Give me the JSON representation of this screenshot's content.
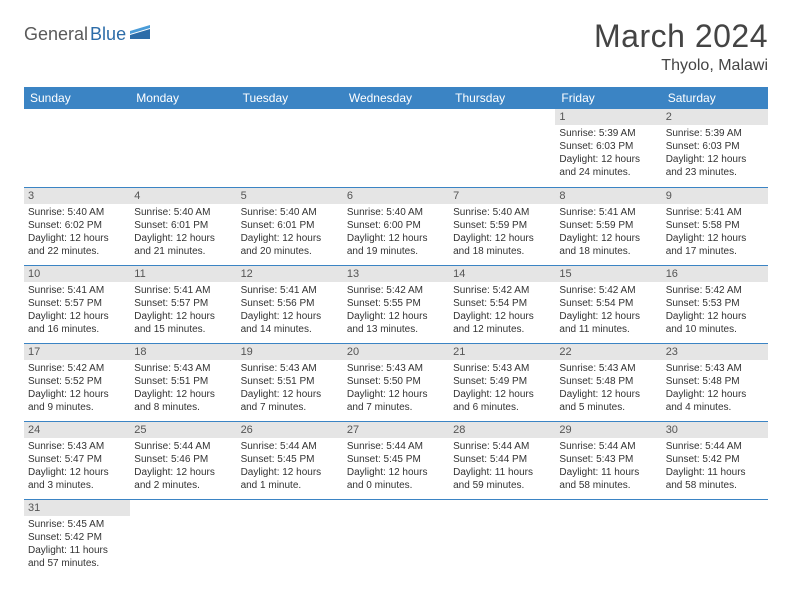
{
  "logo": {
    "part1": "General",
    "part2": "Blue"
  },
  "title": "March 2024",
  "location": "Thyolo, Malawi",
  "weekday_labels": [
    "Sunday",
    "Monday",
    "Tuesday",
    "Wednesday",
    "Thursday",
    "Friday",
    "Saturday"
  ],
  "colors": {
    "header_bg": "#3b84c4",
    "header_text": "#ffffff",
    "daynum_bg": "#e5e5e5",
    "border": "#3b84c4",
    "logo_gray": "#5a5a5a",
    "logo_blue": "#2c6ca8",
    "text": "#333333"
  },
  "grid": [
    [
      null,
      null,
      null,
      null,
      null,
      {
        "n": "1",
        "sunrise": "5:39 AM",
        "sunset": "6:03 PM",
        "daylight": "12 hours and 24 minutes."
      },
      {
        "n": "2",
        "sunrise": "5:39 AM",
        "sunset": "6:03 PM",
        "daylight": "12 hours and 23 minutes."
      }
    ],
    [
      {
        "n": "3",
        "sunrise": "5:40 AM",
        "sunset": "6:02 PM",
        "daylight": "12 hours and 22 minutes."
      },
      {
        "n": "4",
        "sunrise": "5:40 AM",
        "sunset": "6:01 PM",
        "daylight": "12 hours and 21 minutes."
      },
      {
        "n": "5",
        "sunrise": "5:40 AM",
        "sunset": "6:01 PM",
        "daylight": "12 hours and 20 minutes."
      },
      {
        "n": "6",
        "sunrise": "5:40 AM",
        "sunset": "6:00 PM",
        "daylight": "12 hours and 19 minutes."
      },
      {
        "n": "7",
        "sunrise": "5:40 AM",
        "sunset": "5:59 PM",
        "daylight": "12 hours and 18 minutes."
      },
      {
        "n": "8",
        "sunrise": "5:41 AM",
        "sunset": "5:59 PM",
        "daylight": "12 hours and 18 minutes."
      },
      {
        "n": "9",
        "sunrise": "5:41 AM",
        "sunset": "5:58 PM",
        "daylight": "12 hours and 17 minutes."
      }
    ],
    [
      {
        "n": "10",
        "sunrise": "5:41 AM",
        "sunset": "5:57 PM",
        "daylight": "12 hours and 16 minutes."
      },
      {
        "n": "11",
        "sunrise": "5:41 AM",
        "sunset": "5:57 PM",
        "daylight": "12 hours and 15 minutes."
      },
      {
        "n": "12",
        "sunrise": "5:41 AM",
        "sunset": "5:56 PM",
        "daylight": "12 hours and 14 minutes."
      },
      {
        "n": "13",
        "sunrise": "5:42 AM",
        "sunset": "5:55 PM",
        "daylight": "12 hours and 13 minutes."
      },
      {
        "n": "14",
        "sunrise": "5:42 AM",
        "sunset": "5:54 PM",
        "daylight": "12 hours and 12 minutes."
      },
      {
        "n": "15",
        "sunrise": "5:42 AM",
        "sunset": "5:54 PM",
        "daylight": "12 hours and 11 minutes."
      },
      {
        "n": "16",
        "sunrise": "5:42 AM",
        "sunset": "5:53 PM",
        "daylight": "12 hours and 10 minutes."
      }
    ],
    [
      {
        "n": "17",
        "sunrise": "5:42 AM",
        "sunset": "5:52 PM",
        "daylight": "12 hours and 9 minutes."
      },
      {
        "n": "18",
        "sunrise": "5:43 AM",
        "sunset": "5:51 PM",
        "daylight": "12 hours and 8 minutes."
      },
      {
        "n": "19",
        "sunrise": "5:43 AM",
        "sunset": "5:51 PM",
        "daylight": "12 hours and 7 minutes."
      },
      {
        "n": "20",
        "sunrise": "5:43 AM",
        "sunset": "5:50 PM",
        "daylight": "12 hours and 7 minutes."
      },
      {
        "n": "21",
        "sunrise": "5:43 AM",
        "sunset": "5:49 PM",
        "daylight": "12 hours and 6 minutes."
      },
      {
        "n": "22",
        "sunrise": "5:43 AM",
        "sunset": "5:48 PM",
        "daylight": "12 hours and 5 minutes."
      },
      {
        "n": "23",
        "sunrise": "5:43 AM",
        "sunset": "5:48 PM",
        "daylight": "12 hours and 4 minutes."
      }
    ],
    [
      {
        "n": "24",
        "sunrise": "5:43 AM",
        "sunset": "5:47 PM",
        "daylight": "12 hours and 3 minutes."
      },
      {
        "n": "25",
        "sunrise": "5:44 AM",
        "sunset": "5:46 PM",
        "daylight": "12 hours and 2 minutes."
      },
      {
        "n": "26",
        "sunrise": "5:44 AM",
        "sunset": "5:45 PM",
        "daylight": "12 hours and 1 minute."
      },
      {
        "n": "27",
        "sunrise": "5:44 AM",
        "sunset": "5:45 PM",
        "daylight": "12 hours and 0 minutes."
      },
      {
        "n": "28",
        "sunrise": "5:44 AM",
        "sunset": "5:44 PM",
        "daylight": "11 hours and 59 minutes."
      },
      {
        "n": "29",
        "sunrise": "5:44 AM",
        "sunset": "5:43 PM",
        "daylight": "11 hours and 58 minutes."
      },
      {
        "n": "30",
        "sunrise": "5:44 AM",
        "sunset": "5:42 PM",
        "daylight": "11 hours and 58 minutes."
      }
    ],
    [
      {
        "n": "31",
        "sunrise": "5:45 AM",
        "sunset": "5:42 PM",
        "daylight": "11 hours and 57 minutes."
      },
      null,
      null,
      null,
      null,
      null,
      null
    ]
  ],
  "labels": {
    "sunrise": "Sunrise: ",
    "sunset": "Sunset: ",
    "daylight": "Daylight: "
  }
}
